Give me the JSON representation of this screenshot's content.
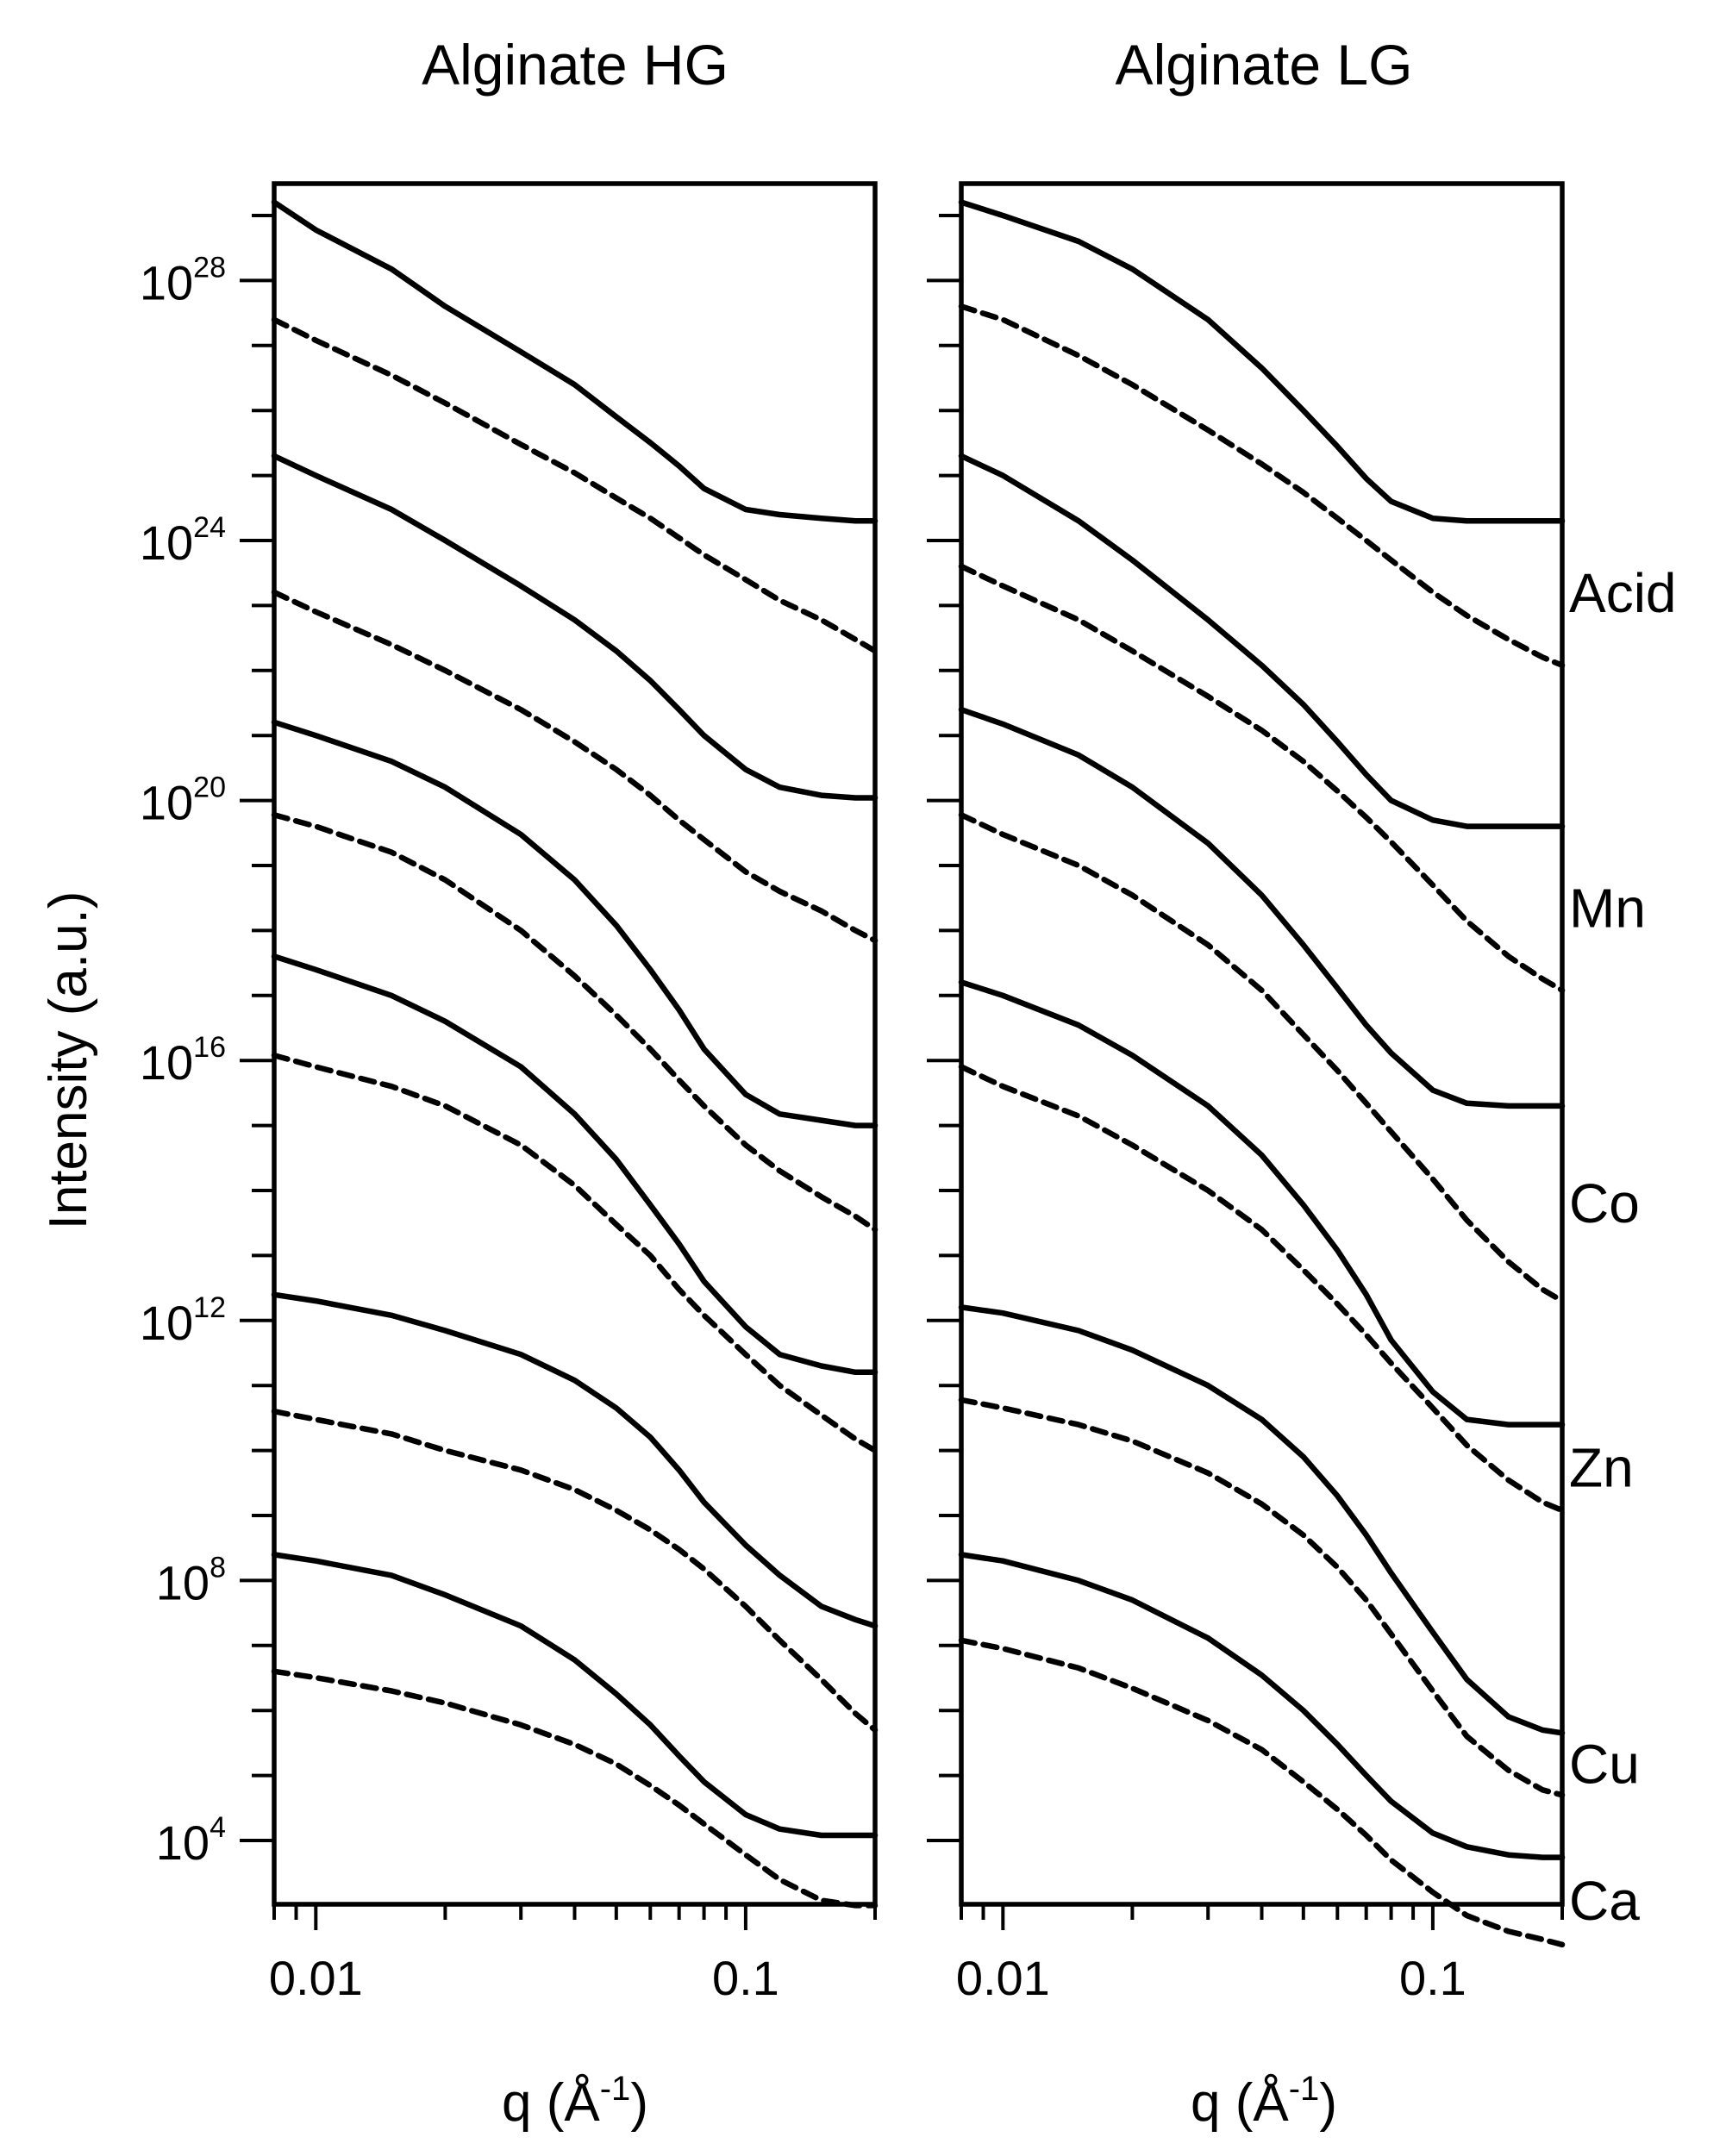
{
  "chart_data": [
    {
      "type": "line",
      "title": "Alginate HG",
      "xlabel": "q (Å-1)",
      "ylabel": "Intensity (a.u.)",
      "x_scale": "log",
      "y_scale": "log",
      "xlim": [
        0.008,
        0.2
      ],
      "ylim": [
        1000,
        1e+30
      ],
      "x_ticks": [
        {
          "value": 0.01,
          "label": "0.01"
        },
        {
          "value": 0.1,
          "label": "0.1"
        }
      ],
      "y_ticks": [
        {
          "value": 10000,
          "base": "10",
          "exp": "4"
        },
        {
          "value": 100000000.0,
          "base": "10",
          "exp": "8"
        },
        {
          "value": 1000000000000.0,
          "base": "10",
          "exp": "12"
        },
        {
          "value": 1e+16,
          "base": "10",
          "exp": "16"
        },
        {
          "value": 1e+20,
          "base": "10",
          "exp": "20"
        },
        {
          "value": 1e+24,
          "base": "10",
          "exp": "24"
        },
        {
          "value": 1e+28,
          "base": "10",
          "exp": "28"
        }
      ],
      "series": [
        {
          "group": "Acid",
          "style": "solid",
          "x": [
            0.008,
            0.01,
            0.015,
            0.02,
            0.03,
            0.04,
            0.05,
            0.06,
            0.07,
            0.08,
            0.1,
            0.12,
            0.15,
            0.18,
            0.2
          ],
          "y": [
            1.6e+29,
            6e+28,
            1.5e+28,
            4e+27,
            8e+26,
            2.5e+26,
            8e+25,
            3.2e+25,
            1.4e+25,
            6.3e+24,
            3e+24,
            2.5e+24,
            2.2e+24,
            2e+24,
            2e+24
          ]
        },
        {
          "group": "Acid",
          "style": "dashed",
          "x": [
            0.008,
            0.01,
            0.015,
            0.02,
            0.03,
            0.04,
            0.05,
            0.06,
            0.07,
            0.08,
            0.1,
            0.12,
            0.15,
            0.18,
            0.2
          ],
          "y": [
            2.5e+27,
            1.2e+27,
            3.5e+26,
            1.3e+26,
            3e+25,
            1.1e+25,
            4.5e+24,
            2.2e+24,
            1.1e+24,
            6e+23,
            2.5e+23,
            1.2e+23,
            6e+22,
            3e+22,
            2e+22
          ]
        },
        {
          "group": "Mn",
          "style": "solid",
          "x": [
            0.008,
            0.01,
            0.015,
            0.02,
            0.03,
            0.04,
            0.05,
            0.06,
            0.07,
            0.08,
            0.1,
            0.12,
            0.15,
            0.18,
            0.2
          ],
          "y": [
            2e+25,
            1e+25,
            3e+24,
            1e+24,
            2e+23,
            6e+22,
            2e+22,
            7e+21,
            2.5e+21,
            1e+21,
            3e+20,
            1.6e+20,
            1.2e+20,
            1.1e+20,
            1.1e+20
          ]
        },
        {
          "group": "Mn",
          "style": "dashed",
          "x": [
            0.008,
            0.01,
            0.015,
            0.02,
            0.03,
            0.04,
            0.05,
            0.06,
            0.07,
            0.08,
            0.1,
            0.12,
            0.15,
            0.18,
            0.2
          ],
          "y": [
            1.6e+23,
            8e+22,
            2.5e+22,
            1e+22,
            2.5e+21,
            8e+20,
            3e+20,
            1.2e+20,
            5e+19,
            2.5e+19,
            8e+18,
            4e+18,
            2e+18,
            1e+18,
            7e+17
          ]
        },
        {
          "group": "Co",
          "style": "solid",
          "x": [
            0.008,
            0.01,
            0.015,
            0.02,
            0.03,
            0.04,
            0.05,
            0.06,
            0.07,
            0.08,
            0.1,
            0.12,
            0.15,
            0.18,
            0.2
          ],
          "y": [
            1.6e+21,
            1e+21,
            4e+20,
            1.6e+20,
            3e+19,
            6e+18,
            1.2e+18,
            2.5e+17,
            6e+16,
            1.5e+16,
            3000000000000000.0,
            1500000000000000.0,
            1200000000000000.0,
            1000000000000000.0,
            1000000000000000.0
          ]
        },
        {
          "group": "Co",
          "style": "dashed",
          "x": [
            0.008,
            0.01,
            0.015,
            0.02,
            0.03,
            0.04,
            0.05,
            0.06,
            0.07,
            0.08,
            0.1,
            0.12,
            0.15,
            0.18,
            0.2
          ],
          "y": [
            6e+19,
            4e+19,
            1.6e+19,
            6e+18,
            1e+18,
            2e+17,
            5e+16,
            1.5e+16,
            5000000000000000.0,
            2000000000000000.0,
            500000000000000.0,
            200000000000000.0,
            80000000000000.0,
            40000000000000.0,
            25000000000000.0
          ]
        },
        {
          "group": "Zn",
          "style": "solid",
          "x": [
            0.008,
            0.01,
            0.015,
            0.02,
            0.03,
            0.04,
            0.05,
            0.06,
            0.07,
            0.08,
            0.1,
            0.12,
            0.15,
            0.18,
            0.2
          ],
          "y": [
            4e+17,
            2.5e+17,
            1e+17,
            4e+16,
            8000000000000000.0,
            1500000000000000.0,
            300000000000000.0,
            60000000000000.0,
            15000000000000.0,
            4000000000000.0,
            800000000000.0,
            300000000000.0,
            200000000000.0,
            160000000000.0,
            160000000000.0
          ]
        },
        {
          "group": "Zn",
          "style": "dashed",
          "x": [
            0.008,
            0.01,
            0.015,
            0.02,
            0.03,
            0.04,
            0.05,
            0.06,
            0.07,
            0.08,
            0.1,
            0.12,
            0.15,
            0.18,
            0.2
          ],
          "y": [
            1.2e+16,
            8000000000000000.0,
            4000000000000000.0,
            2000000000000000.0,
            500000000000000.0,
            120000000000000.0,
            30000000000000.0,
            10000000000000.0,
            3000000000000.0,
            1200000000000.0,
            300000000000.0,
            100000000000.0,
            35000000000.0,
            15000000000.0,
            10000000000.0
          ]
        },
        {
          "group": "Cu",
          "style": "solid",
          "x": [
            0.008,
            0.01,
            0.015,
            0.02,
            0.03,
            0.04,
            0.05,
            0.06,
            0.07,
            0.08,
            0.1,
            0.12,
            0.15,
            0.18,
            0.2
          ],
          "y": [
            2500000000000.0,
            2000000000000.0,
            1200000000000.0,
            700000000000.0,
            300000000000.0,
            120000000000.0,
            45000000000.0,
            16000000000.0,
            5000000000.0,
            1600000000.0,
            350000000.0,
            120000000.0,
            40000000.0,
            25000000.0,
            20000000.0
          ]
        },
        {
          "group": "Cu",
          "style": "dashed",
          "x": [
            0.008,
            0.01,
            0.015,
            0.02,
            0.03,
            0.04,
            0.05,
            0.06,
            0.07,
            0.08,
            0.1,
            0.12,
            0.15,
            0.18,
            0.2
          ],
          "y": [
            40000000000.0,
            30000000000.0,
            18000000000.0,
            10000000000.0,
            5000000000.0,
            2500000000.0,
            1200000000.0,
            600000000.0,
            300000000.0,
            150000000.0,
            40000000.0,
            12000000.0,
            3000000.0,
            900000.0,
            500000.0
          ]
        },
        {
          "group": "Ca",
          "style": "solid",
          "x": [
            0.008,
            0.01,
            0.015,
            0.02,
            0.03,
            0.04,
            0.05,
            0.06,
            0.07,
            0.08,
            0.1,
            0.12,
            0.15,
            0.18,
            0.2
          ],
          "y": [
            250000000.0,
            200000000.0,
            120000000.0,
            60000000.0,
            20000000.0,
            6000000.0,
            1800000.0,
            600000.0,
            200000.0,
            80000.0,
            25000.0,
            15000.0,
            12000.0,
            12000.0,
            12000.0
          ]
        },
        {
          "group": "Ca",
          "style": "dashed",
          "x": [
            0.008,
            0.01,
            0.015,
            0.02,
            0.03,
            0.04,
            0.05,
            0.06,
            0.07,
            0.08,
            0.1,
            0.12,
            0.15,
            0.18,
            0.2
          ],
          "y": [
            4000000.0,
            3200000.0,
            2000000.0,
            1300000.0,
            600000.0,
            300000.0,
            150000.0,
            70000.0,
            35000.0,
            18000.0,
            6000.0,
            2500.0,
            1200.0,
            1000.0,
            1000.0
          ]
        }
      ]
    },
    {
      "type": "line",
      "title": "Alginate LG",
      "xlabel": "q (Å-1)",
      "x_scale": "log",
      "y_scale": "log",
      "xlim": [
        0.008,
        0.2
      ],
      "ylim": [
        1000,
        1e+30
      ],
      "x_ticks": [
        {
          "value": 0.01,
          "label": "0.01"
        },
        {
          "value": 0.1,
          "label": "0.1"
        }
      ],
      "series_labels": [
        "Acid",
        "Mn",
        "Co",
        "Zn",
        "Cu",
        "Ca"
      ],
      "series": [
        {
          "group": "Acid",
          "style": "solid",
          "x": [
            0.008,
            0.01,
            0.015,
            0.02,
            0.03,
            0.04,
            0.05,
            0.06,
            0.07,
            0.08,
            0.1,
            0.12,
            0.15,
            0.18,
            0.2
          ],
          "y": [
            1.6e+29,
            1e+29,
            4e+28,
            1.5e+28,
            2.5e+27,
            4.5e+26,
            1e+26,
            2.8e+25,
            9e+24,
            4e+24,
            2.2e+24,
            2e+24,
            2e+24,
            2e+24,
            2e+24
          ]
        },
        {
          "group": "Acid",
          "style": "dashed",
          "x": [
            0.008,
            0.01,
            0.015,
            0.02,
            0.03,
            0.04,
            0.05,
            0.06,
            0.07,
            0.08,
            0.1,
            0.12,
            0.15,
            0.18,
            0.2
          ],
          "y": [
            4e+27,
            2.5e+27,
            7e+26,
            2.5e+26,
            5e+25,
            1.5e+25,
            5.5e+24,
            2.2e+24,
            1e+24,
            5e+23,
            1.6e+23,
            7e+22,
            3e+22,
            1.6e+22,
            1.2e+22
          ]
        },
        {
          "group": "Mn",
          "style": "solid",
          "x": [
            0.008,
            0.01,
            0.015,
            0.02,
            0.03,
            0.04,
            0.05,
            0.06,
            0.07,
            0.08,
            0.1,
            0.12,
            0.15,
            0.18,
            0.2
          ],
          "y": [
            2e+25,
            1e+25,
            2e+24,
            5e+23,
            6e+22,
            1.2e+22,
            3e+21,
            8e+20,
            2.5e+20,
            1e+20,
            5e+19,
            4e+19,
            4e+19,
            4e+19,
            4e+19
          ]
        },
        {
          "group": "Mn",
          "style": "dashed",
          "x": [
            0.008,
            0.01,
            0.015,
            0.02,
            0.03,
            0.04,
            0.05,
            0.06,
            0.07,
            0.08,
            0.1,
            0.12,
            0.15,
            0.18,
            0.2
          ],
          "y": [
            4e+23,
            2e+23,
            6e+22,
            2e+22,
            4e+21,
            1.2e+21,
            4e+20,
            1.4e+20,
            5.5e+19,
            2.3e+19,
            5e+18,
            1.4e+18,
            4e+17,
            1.8e+17,
            1.2e+17
          ]
        },
        {
          "group": "Co",
          "style": "solid",
          "x": [
            0.008,
            0.01,
            0.015,
            0.02,
            0.03,
            0.04,
            0.05,
            0.06,
            0.07,
            0.08,
            0.1,
            0.12,
            0.15,
            0.18,
            0.2
          ],
          "y": [
            2.5e+21,
            1.5e+21,
            5e+20,
            1.6e+20,
            2.2e+19,
            3.5e+18,
            6e+17,
            1.3e+17,
            3.5e+16,
            1.3e+16,
            3500000000000000.0,
            2200000000000000.0,
            2000000000000000.0,
            2000000000000000.0,
            2000000000000000.0
          ]
        },
        {
          "group": "Co",
          "style": "dashed",
          "x": [
            0.008,
            0.01,
            0.015,
            0.02,
            0.03,
            0.04,
            0.05,
            0.06,
            0.07,
            0.08,
            0.1,
            0.12,
            0.15,
            0.18,
            0.2
          ],
          "y": [
            6e+19,
            3e+19,
            1e+19,
            3.5e+18,
            6e+17,
            1.2e+17,
            2.5e+16,
            7000000000000000.0,
            2200000000000000.0,
            800000000000000.0,
            150000000000000.0,
            35000000000000.0,
            8000000000000.0,
            3000000000000.0,
            2000000000000.0
          ]
        },
        {
          "group": "Zn",
          "style": "solid",
          "x": [
            0.008,
            0.01,
            0.015,
            0.02,
            0.03,
            0.04,
            0.05,
            0.06,
            0.07,
            0.08,
            0.1,
            0.12,
            0.15,
            0.18,
            0.2
          ],
          "y": [
            1.6e+17,
            1e+17,
            3.5e+16,
            1.2e+16,
            2000000000000000.0,
            350000000000000.0,
            60000000000000.0,
            12000000000000.0,
            2500000000000.0,
            500000000000.0,
            80000000000.0,
            30000000000.0,
            25000000000.0,
            25000000000.0,
            25000000000.0
          ]
        },
        {
          "group": "Zn",
          "style": "dashed",
          "x": [
            0.008,
            0.01,
            0.015,
            0.02,
            0.03,
            0.04,
            0.05,
            0.06,
            0.07,
            0.08,
            0.1,
            0.12,
            0.15,
            0.18,
            0.2
          ],
          "y": [
            8000000000000000.0,
            4000000000000000.0,
            1400000000000000.0,
            500000000000000.0,
            100000000000000.0,
            25000000000000.0,
            6000000000000.0,
            1800000000000.0,
            600000000000.0,
            220000000000.0,
            45000000000.0,
            12000000000.0,
            3500000000.0,
            1600000000.0,
            1200000000.0
          ]
        },
        {
          "group": "Cu",
          "style": "solid",
          "x": [
            0.008,
            0.01,
            0.015,
            0.02,
            0.03,
            0.04,
            0.05,
            0.06,
            0.07,
            0.08,
            0.1,
            0.12,
            0.15,
            0.18,
            0.2
          ],
          "y": [
            1600000000000.0,
            1300000000000.0,
            700000000000.0,
            350000000000.0,
            100000000000.0,
            30000000000.0,
            8000000000.0,
            2000000000.0,
            500000000.0,
            130000000.0,
            16000000.0,
            3000000.0,
            800000.0,
            500000.0,
            450000.0
          ]
        },
        {
          "group": "Cu",
          "style": "dashed",
          "x": [
            0.008,
            0.01,
            0.015,
            0.02,
            0.03,
            0.04,
            0.05,
            0.06,
            0.07,
            0.08,
            0.1,
            0.12,
            0.15,
            0.18,
            0.2
          ],
          "y": [
            60000000000.0,
            45000000000.0,
            25000000000.0,
            14000000000.0,
            4500000000.0,
            1500000000.0,
            500000000.0,
            160000000.0,
            50000000.0,
            15000000.0,
            2000000.0,
            400000.0,
            120000.0,
            60000.0,
            50000.0
          ]
        },
        {
          "group": "Ca",
          "style": "solid",
          "x": [
            0.008,
            0.01,
            0.015,
            0.02,
            0.03,
            0.04,
            0.05,
            0.06,
            0.07,
            0.08,
            0.1,
            0.12,
            0.15,
            0.18,
            0.2
          ],
          "y": [
            250000000.0,
            200000000.0,
            100000000.0,
            50000000.0,
            13000000.0,
            3500000.0,
            1000000.0,
            300000.0,
            100000.0,
            40000.0,
            13000.0,
            8000.0,
            6000.0,
            5500.0,
            5500.0
          ]
        },
        {
          "group": "Ca",
          "style": "dashed",
          "x": [
            0.008,
            0.01,
            0.015,
            0.02,
            0.03,
            0.04,
            0.05,
            0.06,
            0.07,
            0.08,
            0.1,
            0.12,
            0.15,
            0.18,
            0.2
          ],
          "y": [
            12000000.0,
            9000000.0,
            4500000.0,
            2200000.0,
            700000.0,
            250000.0,
            80000.0,
            30000.0,
            12000.0,
            5000.0,
            1600.0,
            700.0,
            400.0,
            300.0,
            250.0
          ]
        }
      ]
    }
  ]
}
